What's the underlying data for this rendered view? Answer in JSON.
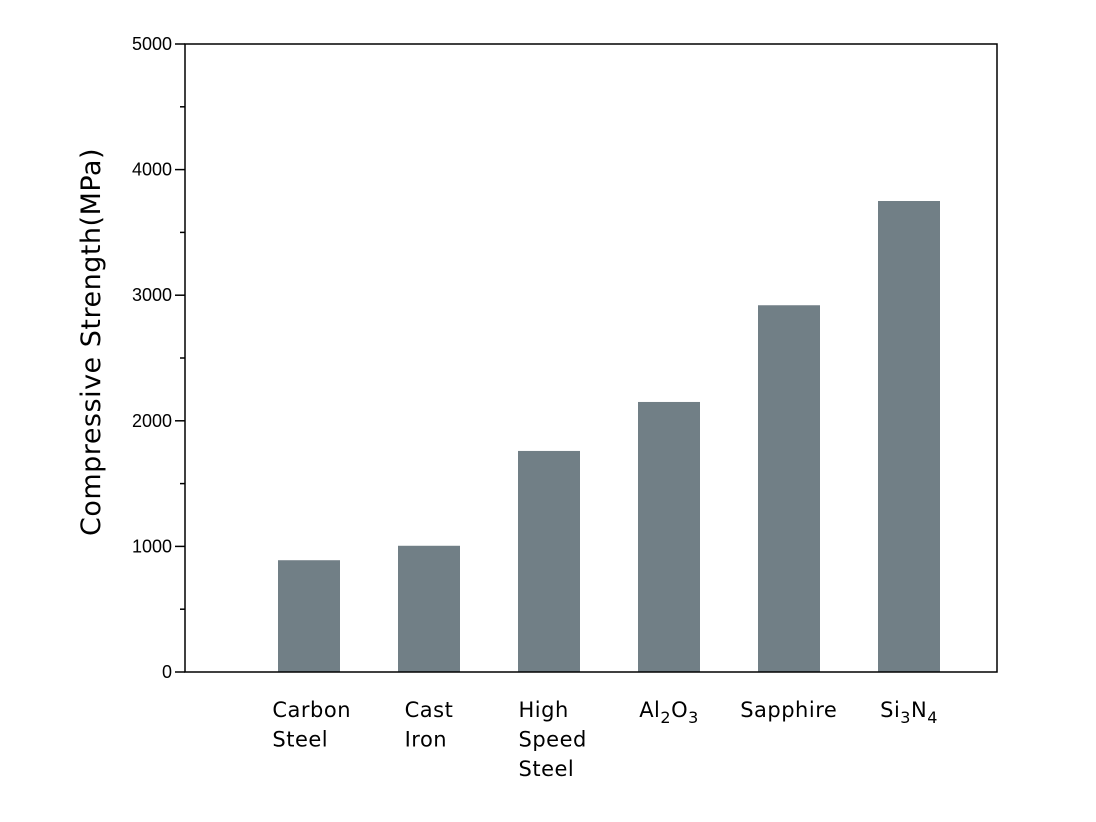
{
  "chart_data": {
    "type": "bar",
    "categories": [
      "Carbon Steel",
      "Cast Iron",
      "High Speed Steel",
      "Al2O3",
      "Sapphire",
      "Si3N4"
    ],
    "category_labels": [
      {
        "lines": [
          "Carbon",
          "Steel"
        ]
      },
      {
        "lines": [
          "Cast",
          "Iron"
        ]
      },
      {
        "lines": [
          "High",
          "Speed",
          "Steel"
        ]
      },
      {
        "parts": [
          {
            "t": "Al",
            "sub": false
          },
          {
            "t": "2",
            "sub": true
          },
          {
            "t": "O",
            "sub": false
          },
          {
            "t": "3",
            "sub": true
          }
        ]
      },
      {
        "lines": [
          "Sapphire"
        ]
      },
      {
        "parts": [
          {
            "t": "Si",
            "sub": false
          },
          {
            "t": "3",
            "sub": true
          },
          {
            "t": "N",
            "sub": false
          },
          {
            "t": "4",
            "sub": true
          }
        ]
      }
    ],
    "values": [
      890,
      1005,
      1760,
      2150,
      2920,
      3750
    ],
    "title": "",
    "xlabel": "",
    "ylabel": "Compressive Strength(MPa)",
    "ylim": [
      0,
      5000
    ],
    "yticks": [
      "0",
      "1000",
      "2000",
      "3000",
      "4000",
      "5000"
    ],
    "minor_tick_step": 500,
    "grid": false,
    "bar_color": "#717f86"
  }
}
